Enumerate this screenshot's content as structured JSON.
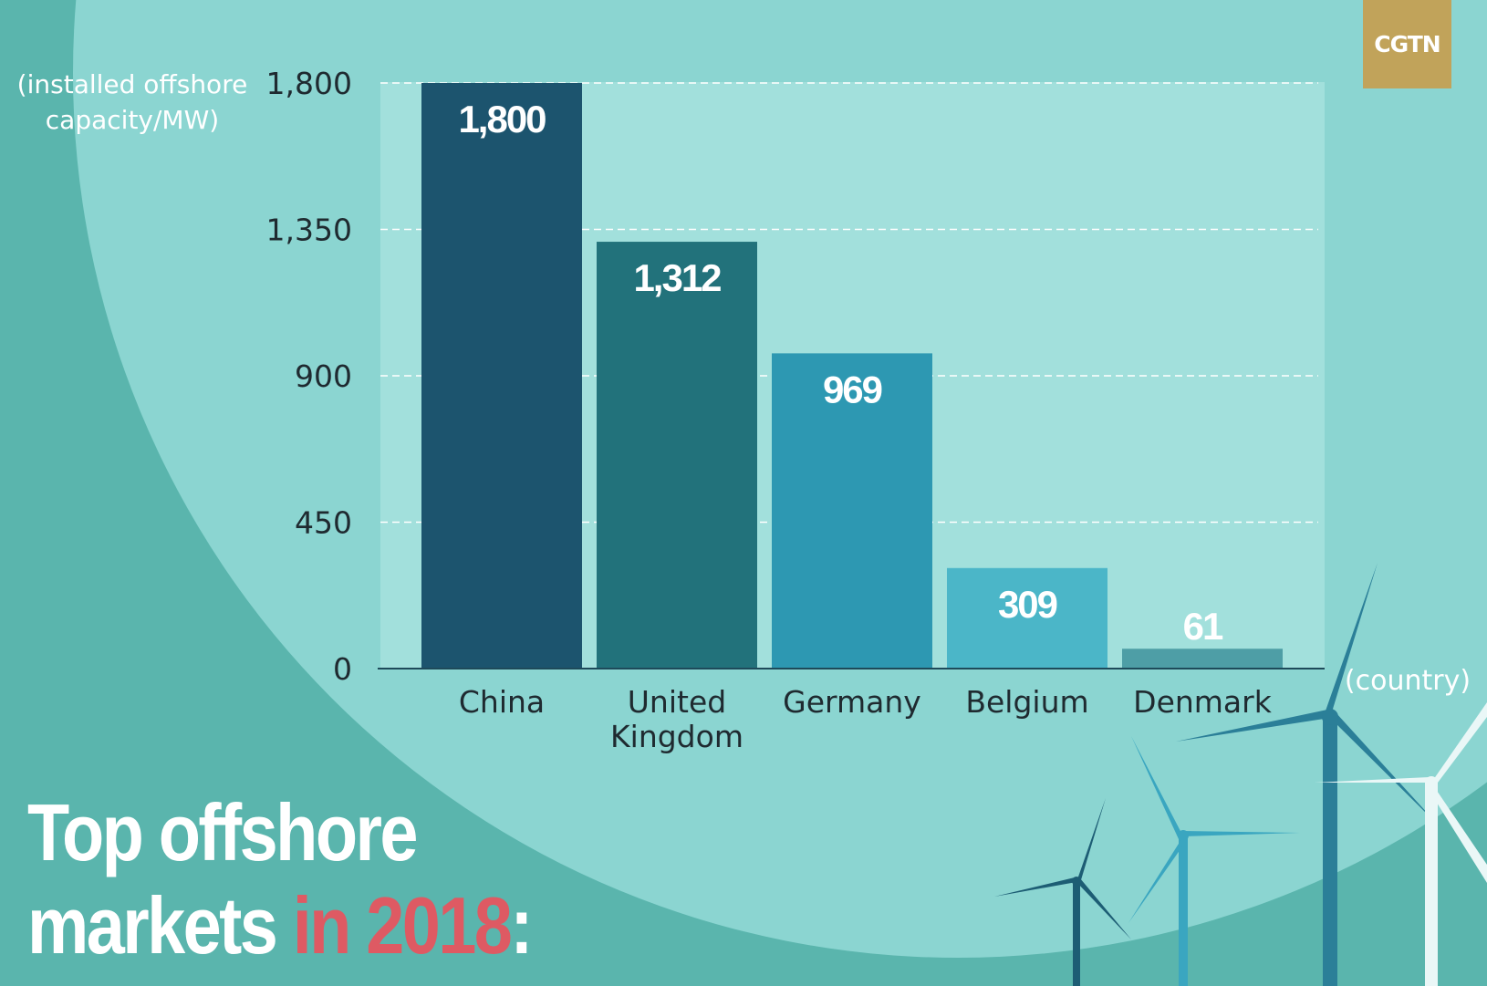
{
  "logo": {
    "text": "CGTN"
  },
  "title": {
    "line1": "Top offshore",
    "line2_part1": "markets ",
    "line2_highlight": "in 2018",
    "line2_part2": ":"
  },
  "colors": {
    "background": "#5ab5ad",
    "circle": "#8bd5d1",
    "plot_area": "#a2e0dc",
    "highlight": "#de5a63",
    "logo": "#c1a35a"
  },
  "chart_data": {
    "type": "bar",
    "ylabel": "(installed offshore capacity/MW)",
    "ylabel_lines": [
      "(installed offshore",
      "capacity/MW)"
    ],
    "xlabel": "(country)",
    "ylim": [
      0,
      1800
    ],
    "yticks": [
      "0",
      "450",
      "900",
      "1,350",
      "1,800"
    ],
    "ytick_values": [
      0,
      450,
      900,
      1350,
      1800
    ],
    "grid": "dashed horizontal",
    "categories": [
      {
        "lines": [
          "China"
        ],
        "value": 1800,
        "label": "1,800",
        "color": "#1c546e"
      },
      {
        "lines": [
          "United",
          "Kingdom"
        ],
        "value": 1312,
        "label": "1,312",
        "color": "#22727b"
      },
      {
        "lines": [
          "Germany"
        ],
        "value": 969,
        "label": "969",
        "color": "#2d98b2"
      },
      {
        "lines": [
          "Belgium"
        ],
        "value": 309,
        "label": "309",
        "color": "#4bb6c8"
      },
      {
        "lines": [
          "Denmark"
        ],
        "value": 61,
        "label": "61",
        "color": "#4e9ea6"
      }
    ]
  }
}
